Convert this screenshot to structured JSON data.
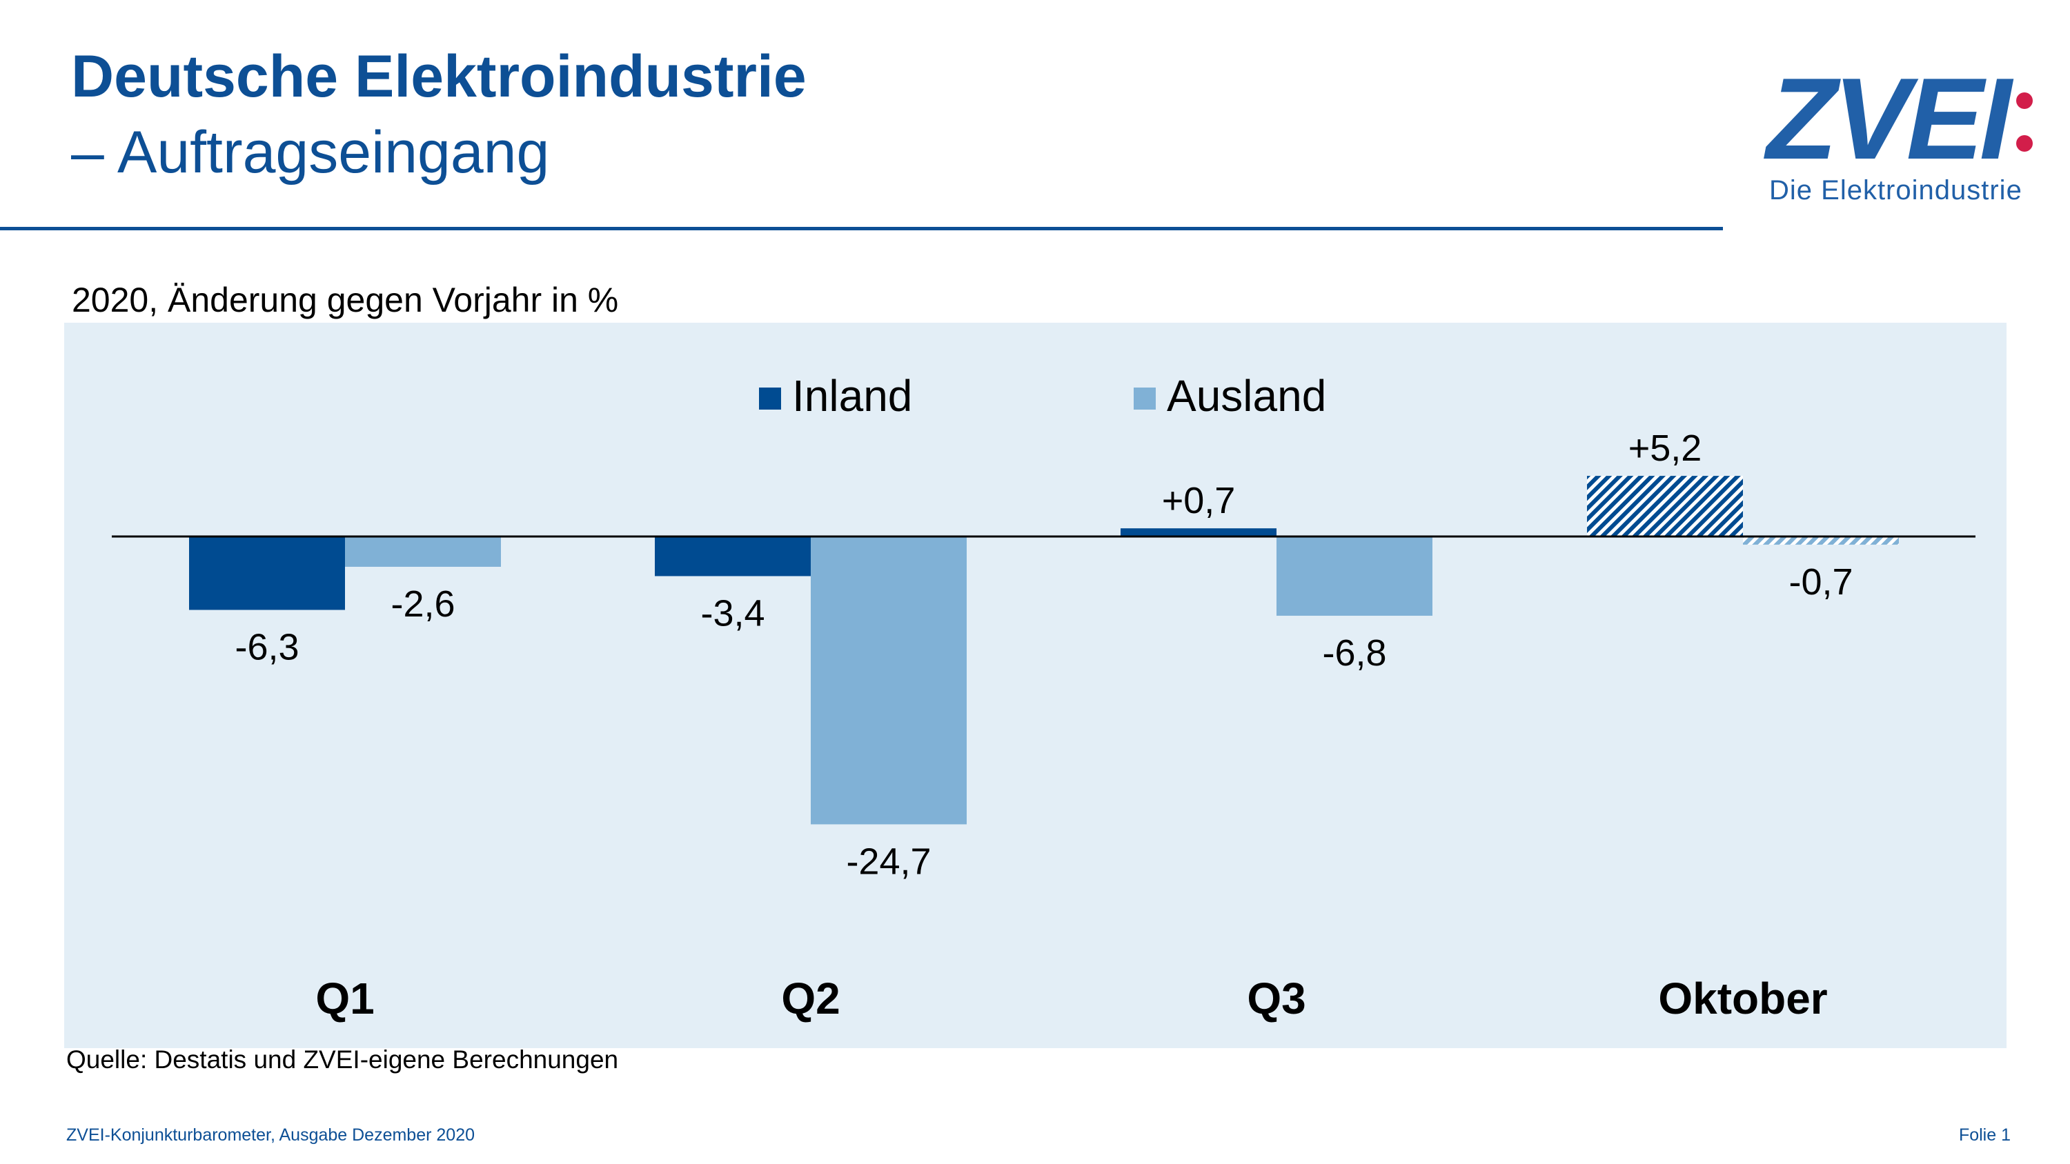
{
  "header": {
    "title": "Deutsche Elektroindustrie",
    "subtitle": "– Auftragseingang"
  },
  "logo": {
    "wordmark": "ZVEI",
    "tagline": "Die Elektroindustrie",
    "colors": {
      "text": "#2160a8",
      "dots": "#d21e4a"
    }
  },
  "chart_data": {
    "type": "bar",
    "subtitle": "2020, Änderung gegen Vorjahr in %",
    "categories": [
      "Q1",
      "Q2",
      "Q3",
      "Oktober"
    ],
    "series": [
      {
        "name": "Inland",
        "values": [
          -6.3,
          -3.4,
          0.7,
          5.2
        ],
        "labels": [
          "-6,3",
          "-3,4",
          "+0,7",
          "+5,2"
        ],
        "color": "#004b91",
        "hatched": [
          false,
          false,
          false,
          true
        ]
      },
      {
        "name": "Ausland",
        "values": [
          -2.6,
          -24.7,
          -6.8,
          -0.7
        ],
        "labels": [
          "-2,6",
          "-24,7",
          "-6,8",
          "-0,7"
        ],
        "color": "#80b1d6",
        "hatched": [
          false,
          false,
          false,
          true
        ]
      }
    ],
    "legend_position": "top-center",
    "grid": false,
    "zero_line": true,
    "plot_background": "#e3eef6"
  },
  "footer": {
    "source": "Quelle: Destatis und ZVEI-eigene Berechnungen",
    "left": "ZVEI-Konjunkturbarometer, Ausgabe Dezember 2020",
    "right": "Folie 1"
  }
}
